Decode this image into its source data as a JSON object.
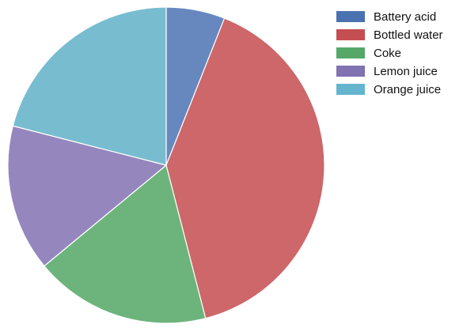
{
  "chart_data": {
    "type": "pie",
    "title": "",
    "legend_position": "top-right",
    "start_angle_deg": 90,
    "direction": "clockwise",
    "slices": [
      {
        "label": "Battery acid",
        "value": 6,
        "color": "#6788bf"
      },
      {
        "label": "Bottled water",
        "value": 40,
        "color": "#cd676a"
      },
      {
        "label": "Coke",
        "value": 18,
        "color": "#6db47c"
      },
      {
        "label": "Lemon juice",
        "value": 15,
        "color": "#9587bd"
      },
      {
        "label": "Orange juice",
        "value": 21,
        "color": "#78bcd0"
      }
    ],
    "legend": [
      {
        "label": "Battery acid",
        "color": "#4a72b0"
      },
      {
        "label": "Bottled water",
        "color": "#c44e52"
      },
      {
        "label": "Coke",
        "color": "#55a868"
      },
      {
        "label": "Lemon juice",
        "color": "#8172b2"
      },
      {
        "label": "Orange juice",
        "color": "#64b5cd"
      }
    ]
  }
}
